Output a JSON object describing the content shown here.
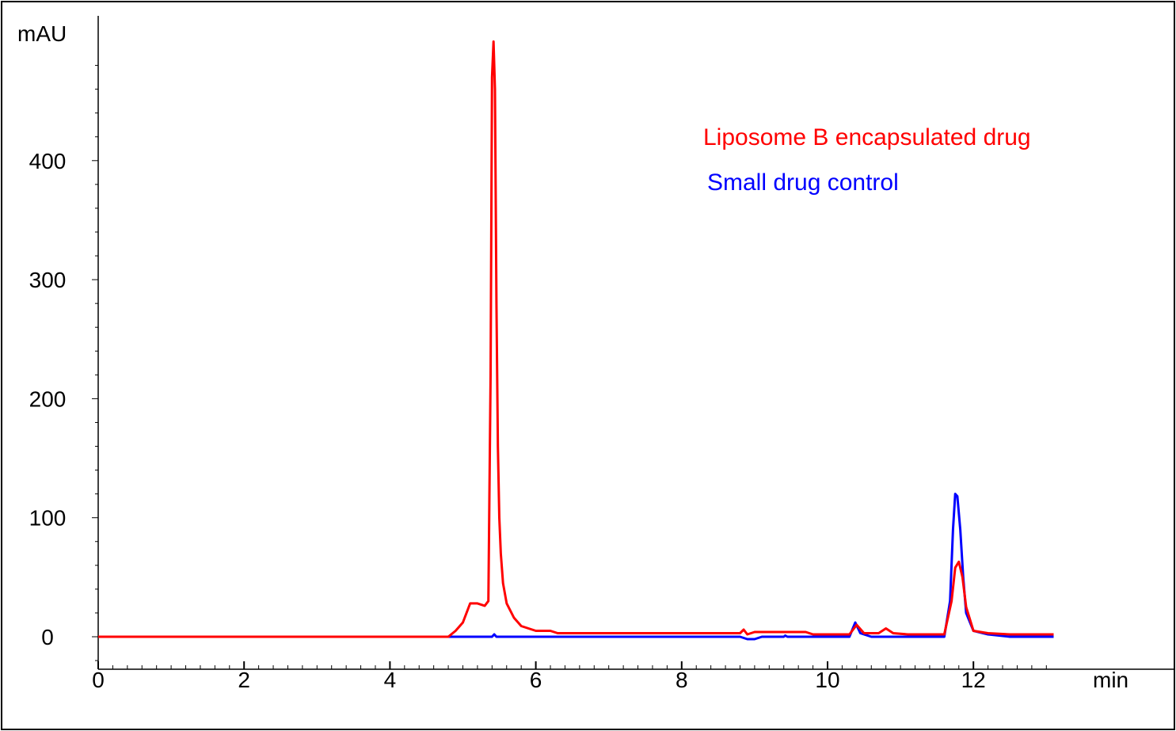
{
  "chart_data": {
    "type": "line",
    "ylabel": "mAU",
    "xlabel": "min",
    "xlim": [
      0,
      13.1
    ],
    "ylim": [
      -30,
      500
    ],
    "x_ticks": [
      0,
      2,
      4,
      6,
      8,
      10,
      12
    ],
    "y_ticks": [
      0,
      100,
      200,
      300,
      400
    ],
    "grid": false,
    "legend_position": "top-right",
    "series": [
      {
        "name": "Liposome B encapsulated drug",
        "color": "#ff0000",
        "x": [
          0,
          4.8,
          4.9,
          5.0,
          5.1,
          5.2,
          5.3,
          5.35,
          5.38,
          5.4,
          5.42,
          5.44,
          5.46,
          5.48,
          5.5,
          5.52,
          5.55,
          5.6,
          5.7,
          5.8,
          6.0,
          6.2,
          6.3,
          8.0,
          8.8,
          8.85,
          8.9,
          9.0,
          9.7,
          9.8,
          10.3,
          10.4,
          10.5,
          10.7,
          10.8,
          10.9,
          11.1,
          11.6,
          11.7,
          11.75,
          11.8,
          11.85,
          11.9,
          12.0,
          12.2,
          12.5,
          13.1
        ],
        "y": [
          0,
          0,
          5,
          12,
          28,
          28,
          26,
          30,
          220,
          470,
          500,
          460,
          280,
          160,
          100,
          70,
          45,
          28,
          16,
          9,
          5,
          5,
          3,
          3,
          3,
          6,
          2,
          4,
          4,
          2,
          2,
          10,
          3,
          3,
          7,
          3,
          2,
          2,
          30,
          58,
          63,
          50,
          25,
          5,
          3,
          2,
          2
        ]
      },
      {
        "name": "Small drug control",
        "color": "#0000ff",
        "x": [
          0,
          5.4,
          5.43,
          5.46,
          5.5,
          8.8,
          8.9,
          9.0,
          9.1,
          9.4,
          9.42,
          9.45,
          10.3,
          10.38,
          10.45,
          10.6,
          11.6,
          11.68,
          11.72,
          11.75,
          11.78,
          11.82,
          11.86,
          11.9,
          12.0,
          12.2,
          12.5,
          13.1
        ],
        "y": [
          0,
          0,
          2,
          0,
          0,
          0,
          -2,
          -2,
          0,
          0,
          1,
          0,
          0,
          12,
          3,
          0,
          0,
          30,
          90,
          120,
          118,
          90,
          50,
          20,
          5,
          2,
          0,
          0
        ]
      }
    ]
  }
}
